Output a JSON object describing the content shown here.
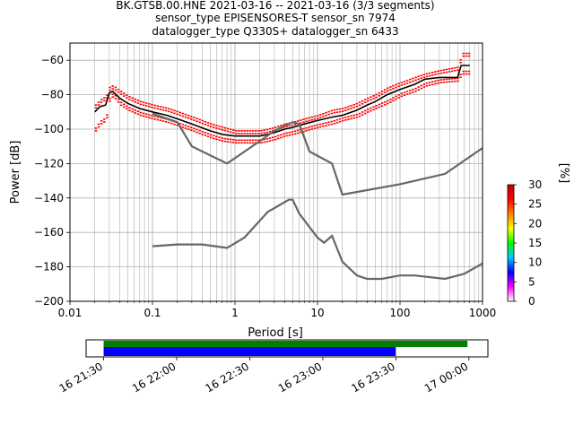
{
  "title_lines": [
    "BK.GTSB.00.HNE   2021-03-16 -- 2021-03-16  (3/3 segments)",
    "sensor_type EPISENSORES-T sensor_sn 7974",
    "datalogger_type Q330S+ datalogger_sn 6433"
  ],
  "colorbar": {
    "label": "[%]",
    "ticks": [
      "0",
      "5",
      "10",
      "15",
      "20",
      "25",
      "30"
    ],
    "tick_values": [
      0,
      5,
      10,
      15,
      20,
      25,
      30
    ],
    "range": [
      0,
      30
    ],
    "colors": [
      "#ffffff",
      "#ff00ff",
      "#0000ff",
      "#00c8ff",
      "#00ff00",
      "#ffff00",
      "#ff8000",
      "#ff0000",
      "#c80000"
    ]
  },
  "timeline": {
    "ticks": [
      "16 21:30",
      "16 22:00",
      "16 22:30",
      "16 23:00",
      "16 23:30",
      "17 00:00"
    ],
    "tick_hours": [
      21.5,
      22.0,
      22.5,
      23.0,
      23.5,
      24.0
    ],
    "xlim_hours": [
      21.38,
      24.13
    ],
    "green_bar": {
      "start_hours": 21.5,
      "end_hours": 23.99,
      "color": "#008000"
    },
    "blue_bar": {
      "start_hours": 21.5,
      "end_hours": 23.5,
      "color": "#0000ff"
    }
  },
  "chart_data": {
    "type": "line",
    "xlabel": "Period [s]",
    "ylabel": "Power [dB]",
    "xscale": "log",
    "xlim": [
      0.01,
      1000
    ],
    "ylim": [
      -200,
      -50
    ],
    "xticks": [
      "0.01",
      "0.1",
      "1",
      "10",
      "100",
      "1000"
    ],
    "xtick_values": [
      0.01,
      0.1,
      1,
      10,
      100,
      1000
    ],
    "yticks": [
      "−60",
      "−80",
      "−100",
      "−120",
      "−140",
      "−160",
      "−180",
      "−200"
    ],
    "ytick_values": [
      -60,
      -80,
      -100,
      -120,
      -140,
      -160,
      -180,
      -200
    ],
    "grid": true,
    "series": [
      {
        "color": "#000000",
        "points": [
          [
            0.02,
            -90
          ],
          [
            0.023,
            -87
          ],
          [
            0.027,
            -86
          ],
          [
            0.03,
            -79
          ],
          [
            0.033,
            -78
          ],
          [
            0.04,
            -82
          ],
          [
            0.05,
            -85
          ],
          [
            0.07,
            -88
          ],
          [
            0.1,
            -90
          ],
          [
            0.15,
            -92
          ],
          [
            0.2,
            -94
          ],
          [
            0.3,
            -97
          ],
          [
            0.5,
            -101
          ],
          [
            0.7,
            -103
          ],
          [
            1,
            -104
          ],
          [
            1.5,
            -104
          ],
          [
            2,
            -104
          ],
          [
            2.5,
            -103
          ],
          [
            3,
            -102
          ],
          [
            4,
            -100
          ],
          [
            5,
            -99
          ],
          [
            7,
            -97
          ],
          [
            10,
            -95
          ],
          [
            15,
            -93
          ],
          [
            20,
            -92
          ],
          [
            30,
            -89
          ],
          [
            40,
            -86
          ],
          [
            50,
            -84
          ],
          [
            70,
            -80
          ],
          [
            100,
            -77
          ],
          [
            150,
            -74
          ],
          [
            200,
            -71
          ],
          [
            300,
            -70
          ],
          [
            500,
            -70
          ],
          [
            550,
            -63
          ],
          [
            700,
            -63
          ]
        ]
      },
      {
        "color": "#666666",
        "points": [
          [
            0.1,
            -91
          ],
          [
            0.2,
            -96
          ],
          [
            0.3,
            -110
          ],
          [
            0.8,
            -120
          ],
          [
            2,
            -107
          ],
          [
            3,
            -101
          ],
          [
            4,
            -98
          ],
          [
            5,
            -96
          ],
          [
            6,
            -97
          ],
          [
            8,
            -113
          ],
          [
            15,
            -120
          ],
          [
            20,
            -138
          ],
          [
            100,
            -132
          ],
          [
            350,
            -126
          ],
          [
            1000,
            -111
          ]
        ]
      },
      {
        "color": "#666666",
        "points": [
          [
            0.1,
            -168
          ],
          [
            0.2,
            -167
          ],
          [
            0.4,
            -167
          ],
          [
            0.8,
            -169
          ],
          [
            1.3,
            -163
          ],
          [
            2.5,
            -148
          ],
          [
            3.5,
            -144
          ],
          [
            4.5,
            -141
          ],
          [
            5,
            -141
          ],
          [
            6,
            -149
          ],
          [
            10,
            -163
          ],
          [
            12,
            -166
          ],
          [
            15,
            -162
          ],
          [
            20,
            -177
          ],
          [
            30,
            -185
          ],
          [
            40,
            -187
          ],
          [
            60,
            -187
          ],
          [
            100,
            -185
          ],
          [
            150,
            -185
          ],
          [
            350,
            -187
          ],
          [
            600,
            -184
          ],
          [
            1000,
            -178
          ]
        ]
      }
    ],
    "histogram": {
      "color": "#ff0000",
      "upper": [
        [
          0.02,
          -86
        ],
        [
          0.023,
          -83
        ],
        [
          0.027,
          -81
        ],
        [
          0.03,
          -75
        ],
        [
          0.033,
          -75
        ],
        [
          0.04,
          -78
        ],
        [
          0.05,
          -81
        ],
        [
          0.07,
          -84
        ],
        [
          0.1,
          -86
        ],
        [
          0.15,
          -88
        ],
        [
          0.2,
          -90
        ],
        [
          0.3,
          -93
        ],
        [
          0.5,
          -97
        ],
        [
          0.7,
          -99
        ],
        [
          1,
          -101
        ],
        [
          1.5,
          -101
        ],
        [
          2,
          -101
        ],
        [
          2.5,
          -100
        ],
        [
          3,
          -99
        ],
        [
          4,
          -97
        ],
        [
          5,
          -96
        ],
        [
          7,
          -94
        ],
        [
          10,
          -92
        ],
        [
          15,
          -89
        ],
        [
          20,
          -88
        ],
        [
          30,
          -85
        ],
        [
          40,
          -82
        ],
        [
          50,
          -80
        ],
        [
          70,
          -76
        ],
        [
          100,
          -73
        ],
        [
          150,
          -70
        ],
        [
          200,
          -68
        ],
        [
          300,
          -66
        ],
        [
          500,
          -64
        ],
        [
          550,
          -56
        ],
        [
          700,
          -56
        ]
      ],
      "lower": [
        [
          0.02,
          -101
        ],
        [
          0.023,
          -97
        ],
        [
          0.027,
          -95
        ],
        [
          0.03,
          -82
        ],
        [
          0.033,
          -81
        ],
        [
          0.04,
          -86
        ],
        [
          0.05,
          -89
        ],
        [
          0.07,
          -92
        ],
        [
          0.1,
          -94
        ],
        [
          0.15,
          -96
        ],
        [
          0.2,
          -98
        ],
        [
          0.3,
          -101
        ],
        [
          0.5,
          -105
        ],
        [
          0.7,
          -107
        ],
        [
          1,
          -108
        ],
        [
          1.5,
          -108
        ],
        [
          2,
          -108
        ],
        [
          2.5,
          -107
        ],
        [
          3,
          -106
        ],
        [
          4,
          -104
        ],
        [
          5,
          -103
        ],
        [
          7,
          -101
        ],
        [
          10,
          -99
        ],
        [
          15,
          -97
        ],
        [
          20,
          -95
        ],
        [
          30,
          -93
        ],
        [
          40,
          -90
        ],
        [
          50,
          -88
        ],
        [
          70,
          -85
        ],
        [
          100,
          -81
        ],
        [
          150,
          -78
        ],
        [
          200,
          -75
        ],
        [
          300,
          -73
        ],
        [
          500,
          -72
        ],
        [
          550,
          -68
        ],
        [
          700,
          -68
        ]
      ]
    }
  }
}
